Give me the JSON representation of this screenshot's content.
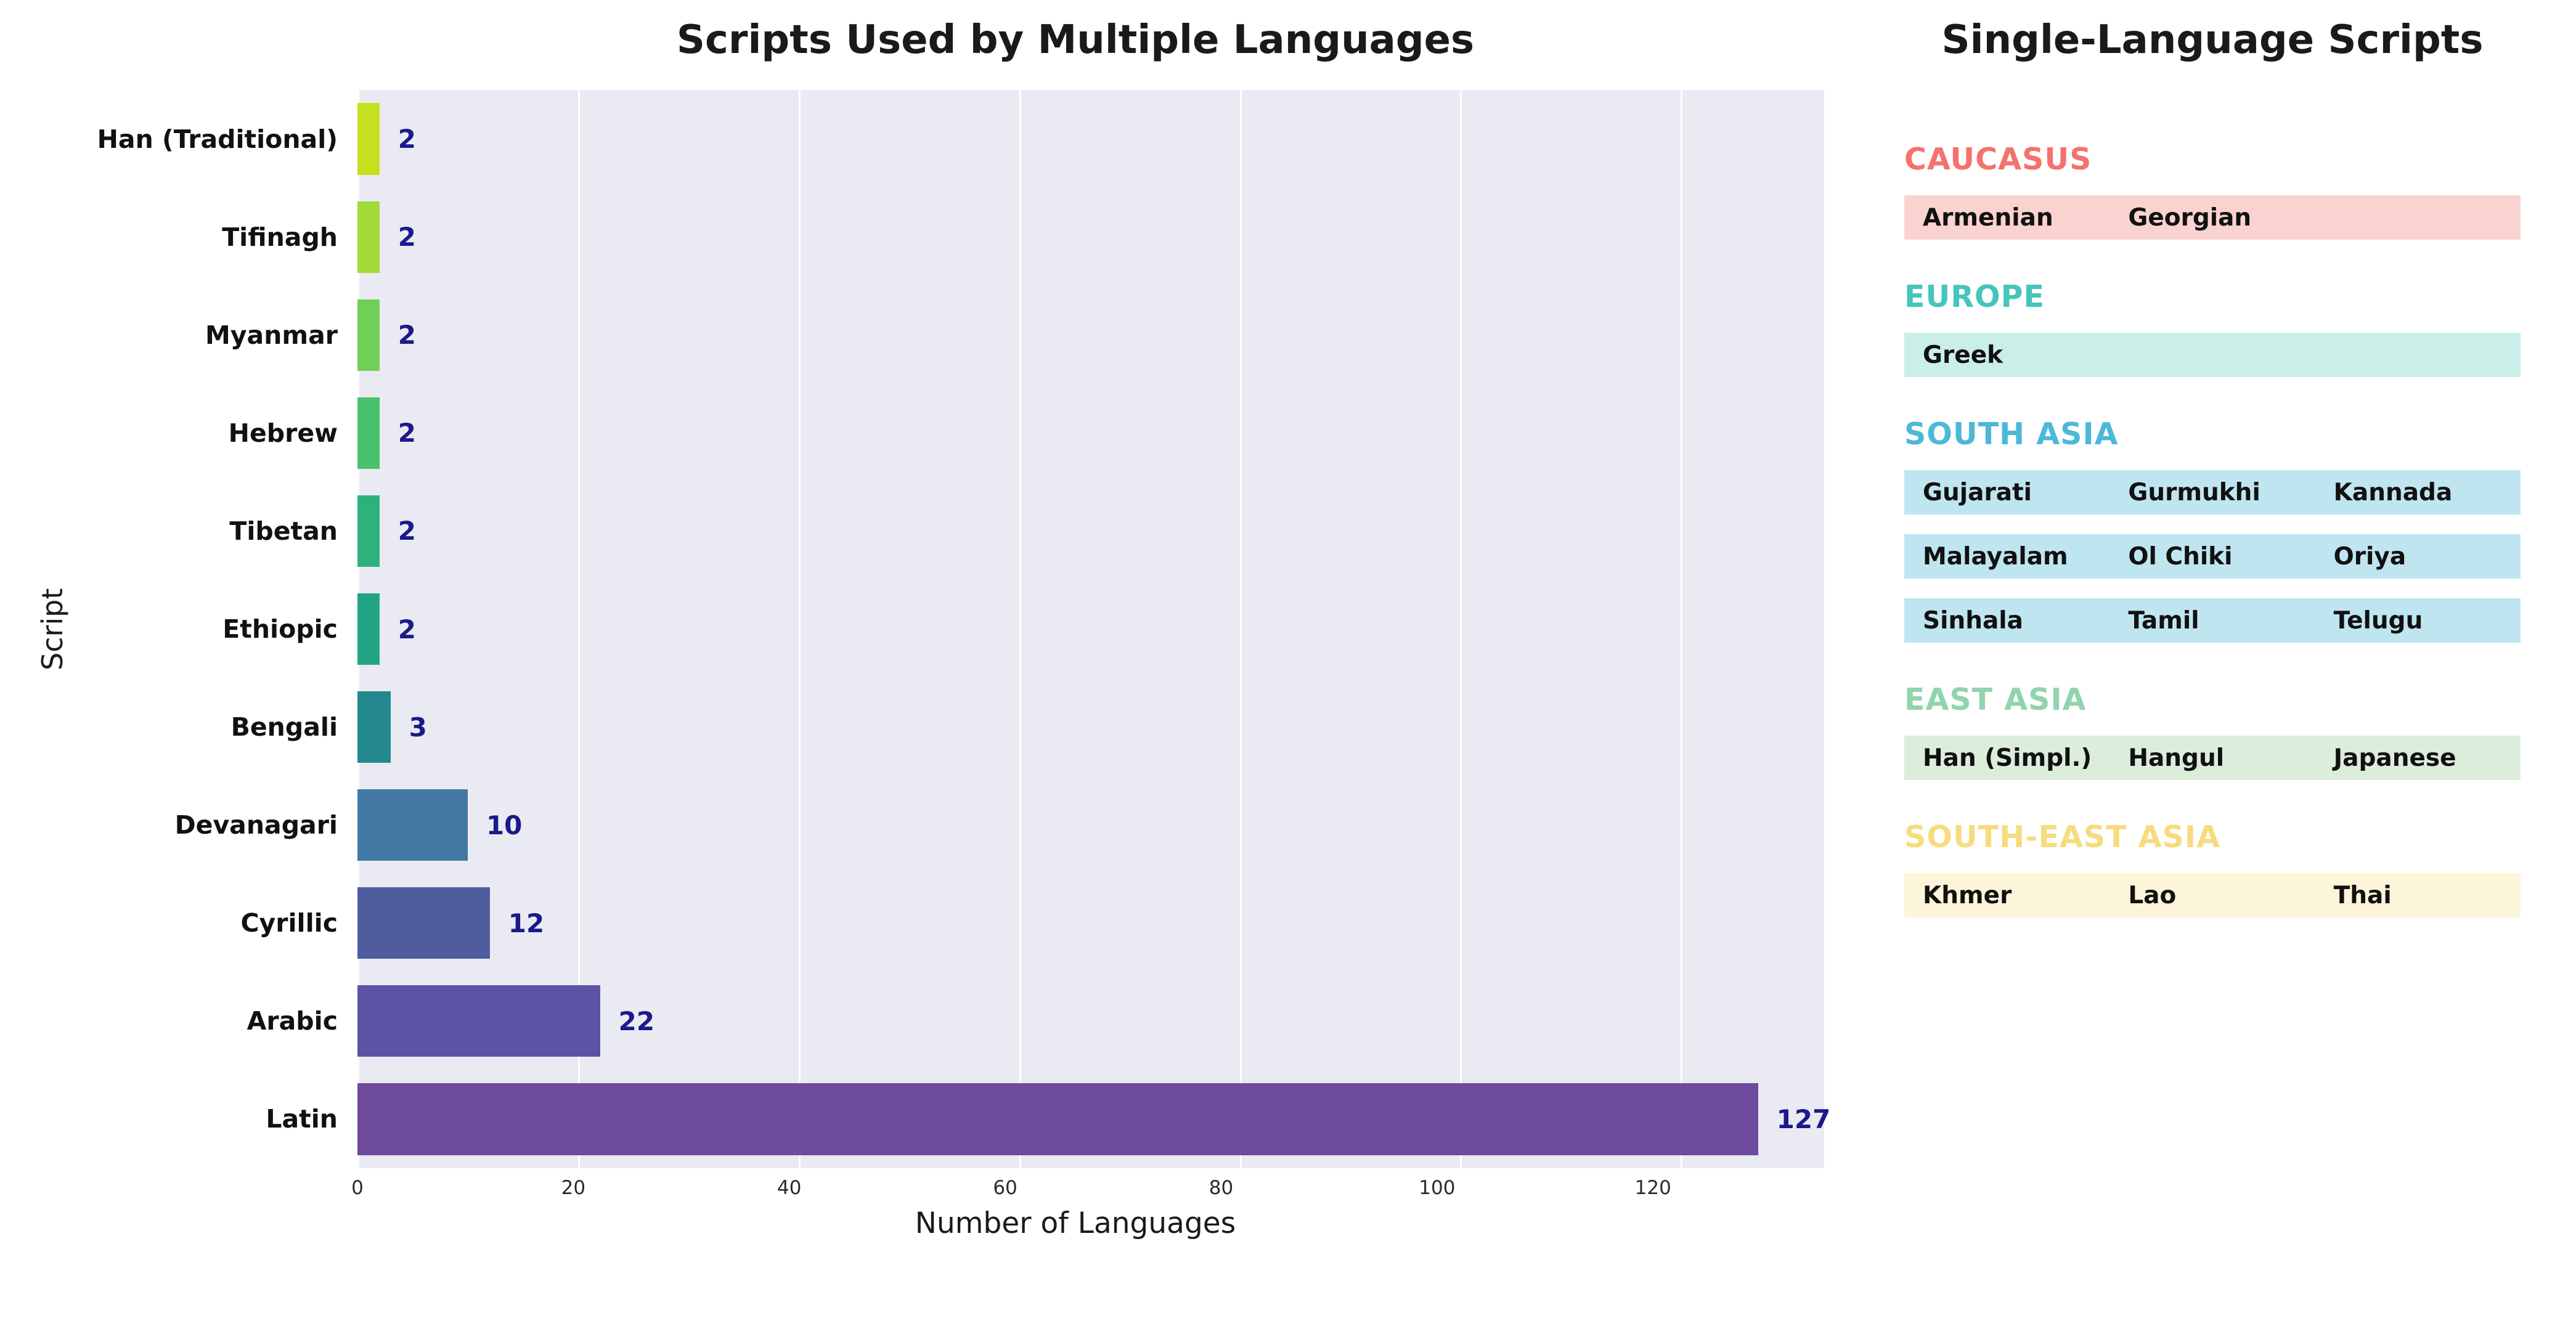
{
  "chart_data": {
    "type": "bar",
    "orientation": "horizontal",
    "title": "Scripts Used by Multiple Languages",
    "xlabel": "Number of Languages",
    "ylabel": "Script",
    "xlim": [
      0,
      133
    ],
    "xticks": [
      0,
      20,
      40,
      60,
      80,
      100,
      120
    ],
    "grid": "vertical-white",
    "plot_background": "#eaeaf2",
    "grid_color": "#ffffff",
    "value_label_color": "#1a1a8c",
    "categories_top_to_bottom": [
      "Han (Traditional)",
      "Tifinagh",
      "Myanmar",
      "Hebrew",
      "Tibetan",
      "Ethiopic",
      "Bengali",
      "Devanagari",
      "Cyrillic",
      "Arabic",
      "Latin"
    ],
    "values": [
      2,
      2,
      2,
      2,
      2,
      2,
      3,
      10,
      12,
      22,
      127
    ],
    "bar_colors": [
      "#c7e020",
      "#a2da37",
      "#70cf57",
      "#4ac16d",
      "#2db27d",
      "#21a585",
      "#23898e",
      "#4279a5",
      "#4f5d9f",
      "#5c53a5",
      "#6e4b9c"
    ]
  },
  "legend": {
    "title": "Single-Language Scripts",
    "sections": [
      {
        "name": "CAUCASUS",
        "header_color": "#f4726d",
        "row_background": "#fad3d0",
        "rows": [
          [
            "Armenian",
            "Georgian",
            ""
          ]
        ]
      },
      {
        "name": "EUROPE",
        "header_color": "#45c5bb",
        "row_background": "#c9efe8",
        "rows": [
          [
            "Greek",
            "",
            ""
          ]
        ]
      },
      {
        "name": "SOUTH ASIA",
        "header_color": "#4cb8d9",
        "row_background": "#bfe5f0",
        "rows": [
          [
            "Gujarati",
            "Gurmukhi",
            "Kannada"
          ],
          [
            "Malayalam",
            "Ol Chiki",
            "Oriya"
          ],
          [
            "Sinhala",
            "Tamil",
            "Telugu"
          ]
        ]
      },
      {
        "name": "EAST ASIA",
        "header_color": "#90d4ad",
        "row_background": "#dceedb",
        "rows": [
          [
            "Han (Simpl.)",
            "Hangul",
            "Japanese"
          ]
        ]
      },
      {
        "name": "SOUTH-EAST ASIA",
        "header_color": "#f6dc7e",
        "row_background": "#fdf5d9",
        "rows": [
          [
            "Khmer",
            "Lao",
            "Thai"
          ]
        ]
      }
    ]
  }
}
